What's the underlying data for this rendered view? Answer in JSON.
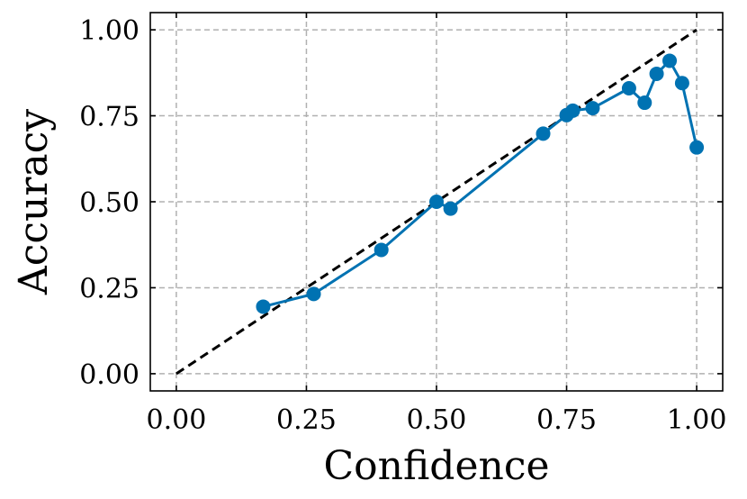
{
  "chart_data": {
    "type": "line",
    "title": "",
    "xlabel": "Confidence",
    "ylabel": "Accuracy",
    "xlim": [
      -0.05,
      1.05
    ],
    "ylim": [
      -0.05,
      1.05
    ],
    "xticks": [
      0.0,
      0.25,
      0.5,
      0.75,
      1.0
    ],
    "xtick_labels": [
      "0.00",
      "0.25",
      "0.50",
      "0.75",
      "1.00"
    ],
    "yticks": [
      0.0,
      0.25,
      0.5,
      0.75,
      1.0
    ],
    "ytick_labels": [
      "0.00",
      "0.25",
      "0.50",
      "0.75",
      "1.00"
    ],
    "grid": true,
    "reference_line": {
      "x": [
        0,
        1
      ],
      "y": [
        0,
        1
      ],
      "style": "dashed",
      "color": "#000000"
    },
    "series": [
      {
        "color": "#0072b2",
        "marker": "circle",
        "x": [
          0.167,
          0.264,
          0.394,
          0.5,
          0.527,
          0.705,
          0.75,
          0.762,
          0.8,
          0.87,
          0.9,
          0.923,
          0.948,
          0.972,
          1.0
        ],
        "y": [
          0.195,
          0.232,
          0.36,
          0.5,
          0.48,
          0.698,
          0.752,
          0.765,
          0.772,
          0.83,
          0.788,
          0.872,
          0.91,
          0.845,
          0.658
        ]
      }
    ]
  }
}
